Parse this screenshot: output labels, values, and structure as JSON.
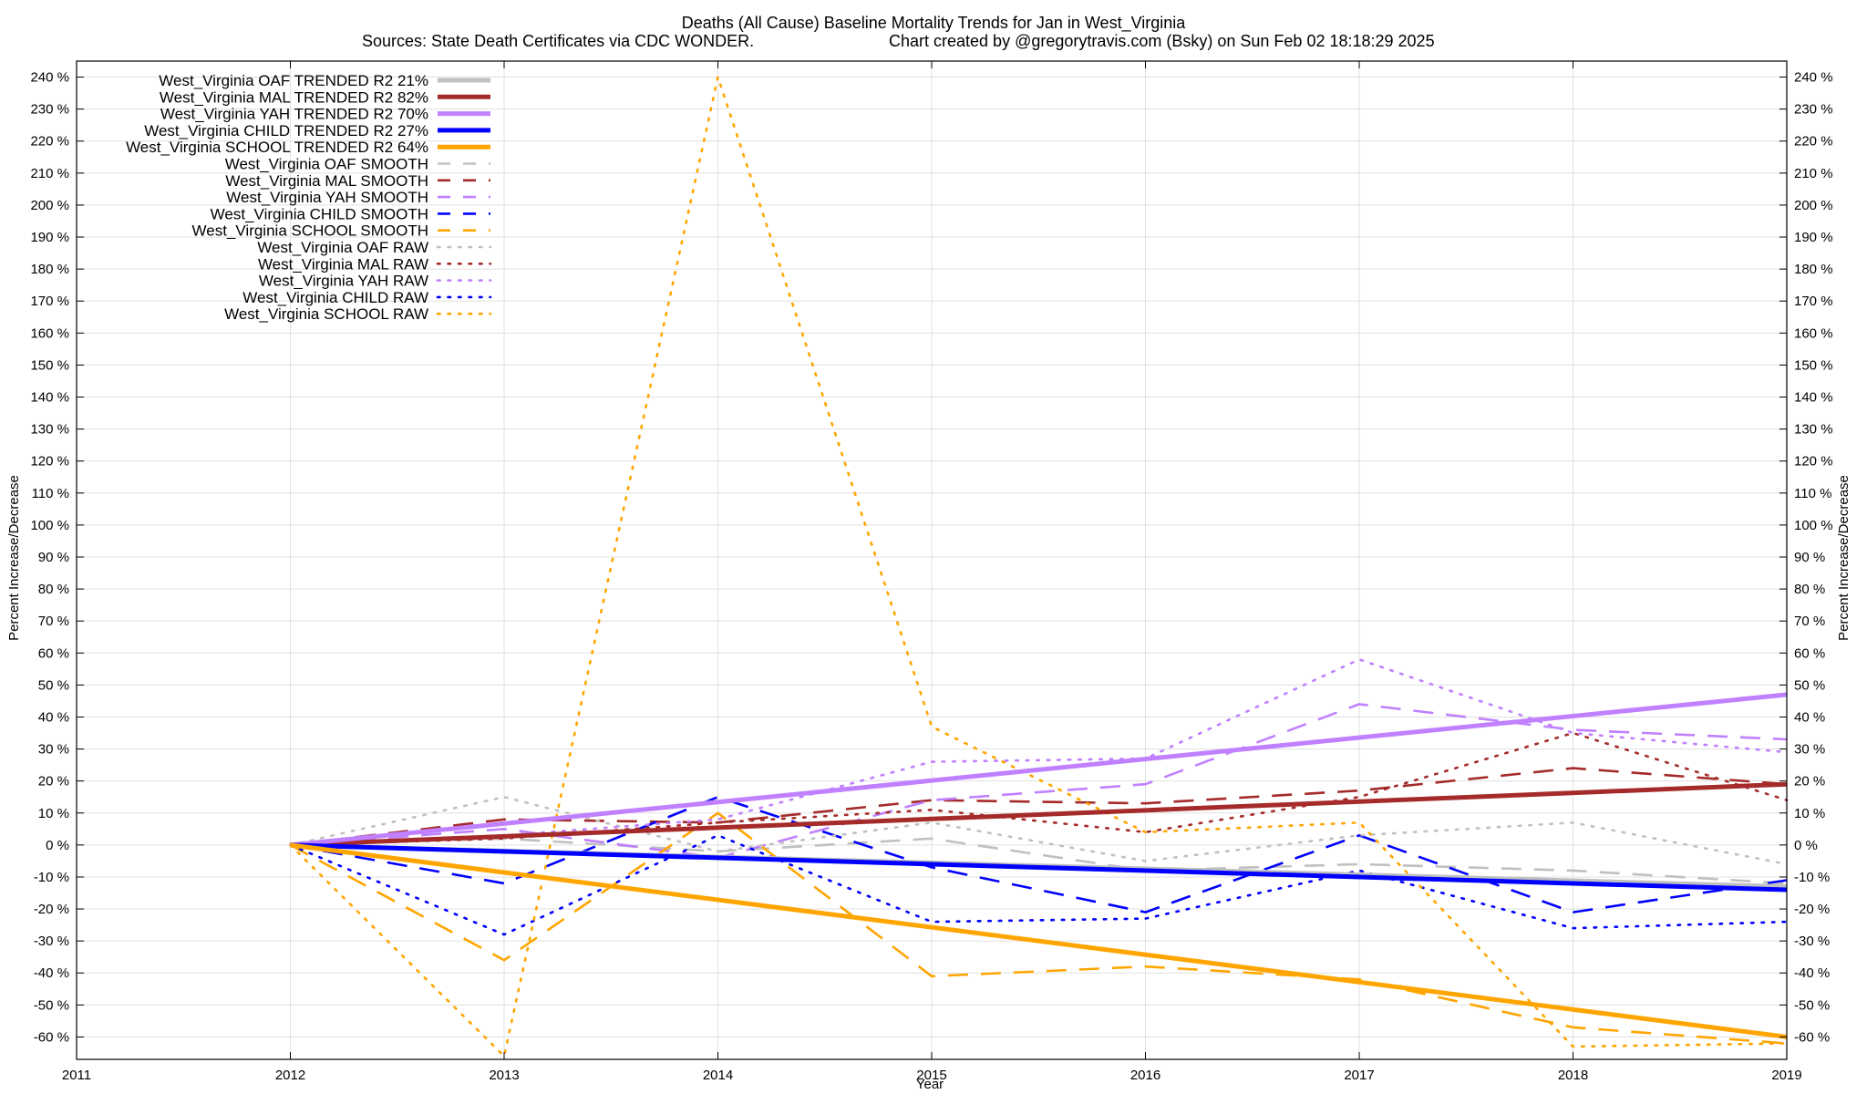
{
  "chart_data": {
    "type": "line",
    "title": "Deaths (All Cause)  Baseline Mortality Trends for Jan in West_Virginia",
    "subtitle_left": "Sources: State Death Certificates via CDC WONDER.",
    "subtitle_right": "Chart created by @gregorytravis.com (Bsky) on Sun Feb 02 18:18:29 2025",
    "xlabel": "Year",
    "ylabel": "Percent Increase/Decrease",
    "y2label": "Percent Increase/Decrease",
    "xlim": [
      2011,
      2019
    ],
    "ylim": [
      -67,
      245
    ],
    "x_ticks": [
      "2011",
      "2012",
      "2013",
      "2014",
      "2015",
      "2016",
      "2017",
      "2018",
      "2019"
    ],
    "y_ticks": [
      "240 %",
      "230 %",
      "220 %",
      "210 %",
      "200 %",
      "190 %",
      "180 %",
      "170 %",
      "160 %",
      "150 %",
      "140 %",
      "130 %",
      "120 %",
      "110 %",
      "100 %",
      "90 %",
      "80 %",
      "70 %",
      "60 %",
      "50 %",
      "40 %",
      "30 %",
      "20 %",
      "10 %",
      "0 %",
      "-10 %",
      "-20 %",
      "-30 %",
      "-40 %",
      "-50 %",
      "-60 %"
    ],
    "grid": true,
    "legend_position": "top-left",
    "series": [
      {
        "name": "West_Virginia OAF TRENDED R2  21%",
        "style": "solid",
        "color": "#c0c0c0",
        "x": [
          2012,
          2019
        ],
        "values": [
          0,
          -13
        ]
      },
      {
        "name": "West_Virginia MAL TRENDED R2  82%",
        "style": "solid",
        "color": "#a52a2a",
        "x": [
          2012,
          2019
        ],
        "values": [
          0,
          19
        ]
      },
      {
        "name": "West_Virginia YAH TRENDED R2  70%",
        "style": "solid",
        "color": "#c080ff",
        "x": [
          2012,
          2019
        ],
        "values": [
          0,
          47
        ]
      },
      {
        "name": "West_Virginia CHILD TRENDED R2  27%",
        "style": "solid",
        "color": "#0000ff",
        "x": [
          2012,
          2019
        ],
        "values": [
          0,
          -14
        ]
      },
      {
        "name": "West_Virginia SCHOOL TRENDED R2  64%",
        "style": "solid",
        "color": "#ffa500",
        "x": [
          2012,
          2019
        ],
        "values": [
          0,
          -60
        ]
      },
      {
        "name": "West_Virginia OAF SMOOTH",
        "style": "dashed",
        "color": "#c0c0c0",
        "x": [
          2012,
          2013,
          2014,
          2015,
          2016,
          2017,
          2018,
          2019
        ],
        "values": [
          0,
          2,
          -2,
          2,
          -8,
          -6,
          -8,
          -12
        ]
      },
      {
        "name": "West_Virginia MAL SMOOTH",
        "style": "dashed",
        "color": "#a52a2a",
        "x": [
          2012,
          2013,
          2014,
          2015,
          2016,
          2017,
          2018,
          2019
        ],
        "values": [
          0,
          8,
          7,
          14,
          13,
          17,
          24,
          19
        ]
      },
      {
        "name": "West_Virginia YAH SMOOTH",
        "style": "dashed",
        "color": "#c080ff",
        "x": [
          2012,
          2013,
          2014,
          2015,
          2016,
          2017,
          2018,
          2019
        ],
        "values": [
          0,
          5,
          -4,
          14,
          19,
          44,
          36,
          33
        ]
      },
      {
        "name": "West_Virginia CHILD SMOOTH",
        "style": "dashed",
        "color": "#0000ff",
        "x": [
          2012,
          2013,
          2014,
          2015,
          2016,
          2017,
          2018,
          2019
        ],
        "values": [
          0,
          -12,
          15,
          -7,
          -21,
          3,
          -21,
          -11
        ]
      },
      {
        "name": "West_Virginia SCHOOL SMOOTH",
        "style": "dashed",
        "color": "#ffa500",
        "x": [
          2012,
          2013,
          2014,
          2015,
          2016,
          2017,
          2018,
          2019
        ],
        "values": [
          0,
          -36,
          10,
          -41,
          -38,
          -42,
          -57,
          -62
        ]
      },
      {
        "name": "West_Virginia OAF RAW",
        "style": "dotted",
        "color": "#c0c0c0",
        "x": [
          2012,
          2013,
          2014,
          2015,
          2016,
          2017,
          2018,
          2019
        ],
        "values": [
          0,
          15,
          -2,
          7,
          -5,
          3,
          7,
          -6
        ]
      },
      {
        "name": "West_Virginia MAL RAW",
        "style": "dotted",
        "color": "#a52a2a",
        "x": [
          2012,
          2013,
          2014,
          2015,
          2016,
          2017,
          2018,
          2019
        ],
        "values": [
          0,
          2,
          7,
          11,
          4,
          15,
          35,
          14
        ]
      },
      {
        "name": "West_Virginia YAH RAW",
        "style": "dotted",
        "color": "#c080ff",
        "x": [
          2012,
          2013,
          2014,
          2015,
          2016,
          2017,
          2018,
          2019
        ],
        "values": [
          0,
          3,
          8,
          26,
          27,
          58,
          35,
          29
        ]
      },
      {
        "name": "West_Virginia CHILD RAW",
        "style": "dotted",
        "color": "#0000ff",
        "x": [
          2012,
          2013,
          2014,
          2015,
          2016,
          2017,
          2018,
          2019
        ],
        "values": [
          0,
          -28,
          3,
          -24,
          -23,
          -8,
          -26,
          -24
        ]
      },
      {
        "name": "West_Virginia SCHOOL RAW",
        "style": "dotted",
        "color": "#ffa500",
        "x": [
          2012,
          2013,
          2014,
          2015,
          2016,
          2017,
          2018,
          2019
        ],
        "values": [
          0,
          -66,
          240,
          37,
          4,
          7,
          -63,
          -62
        ]
      }
    ]
  }
}
